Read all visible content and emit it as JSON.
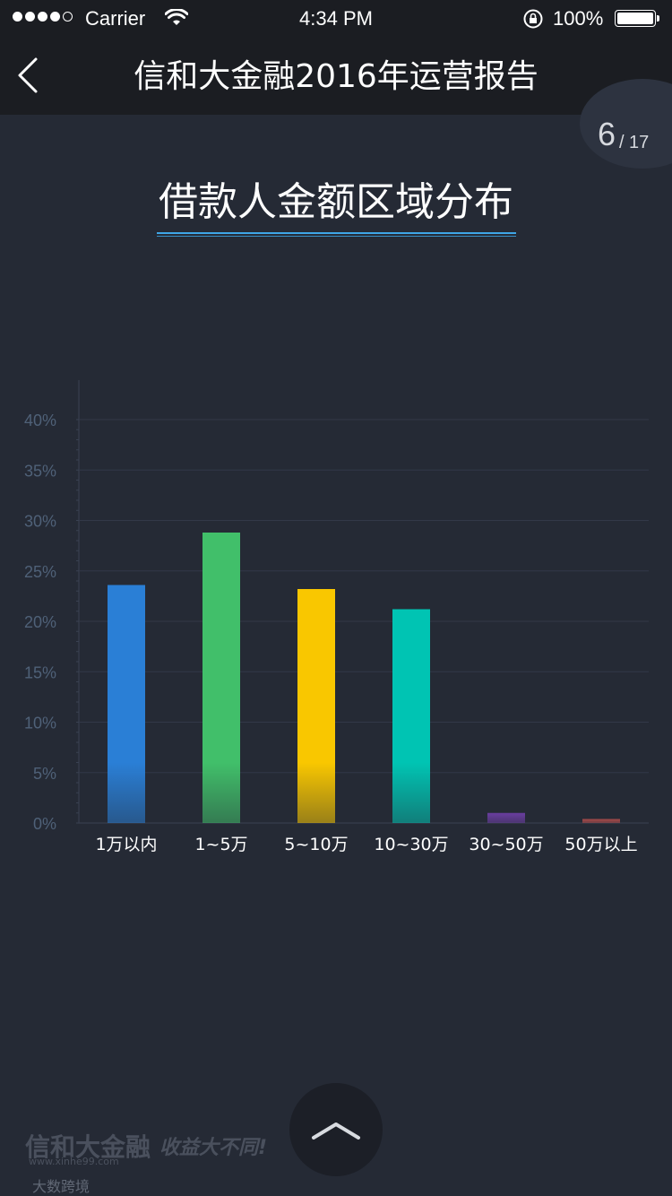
{
  "status_bar": {
    "carrier": "Carrier",
    "time": "4:34 PM",
    "battery": "100%"
  },
  "nav": {
    "title": "信和大金融2016年运营报告"
  },
  "page_indicator": {
    "current": "6",
    "separator": "/",
    "total": "17"
  },
  "section": {
    "title": "借款人金额区域分布"
  },
  "colors": {
    "background": "#252a35",
    "navbar": "#1b1d22",
    "accent_underline": "#3fa6e6",
    "axis_text": "#4f6178",
    "grid": "#323848"
  },
  "chart_data": {
    "type": "bar",
    "categories": [
      "1万以内",
      "1~5万",
      "5~10万",
      "10~30万",
      "30~50万",
      "50万以上"
    ],
    "values": [
      23.6,
      28.8,
      23.2,
      21.2,
      1.0,
      0.4
    ],
    "colors": [
      "#2a7fd6",
      "#41bf6a",
      "#f9c700",
      "#00c4b3",
      "#6a3ea0",
      "#a84a4a"
    ],
    "y_ticks": [
      "0%",
      "5%",
      "10%",
      "15%",
      "20%",
      "25%",
      "30%",
      "35%",
      "40%"
    ],
    "ylim": [
      0,
      40
    ],
    "grid": true
  },
  "watermark": {
    "brand": "信和大金融",
    "slogan": "收益大不同!",
    "url": "www.xinhe99.com",
    "footer": "大数跨境"
  }
}
